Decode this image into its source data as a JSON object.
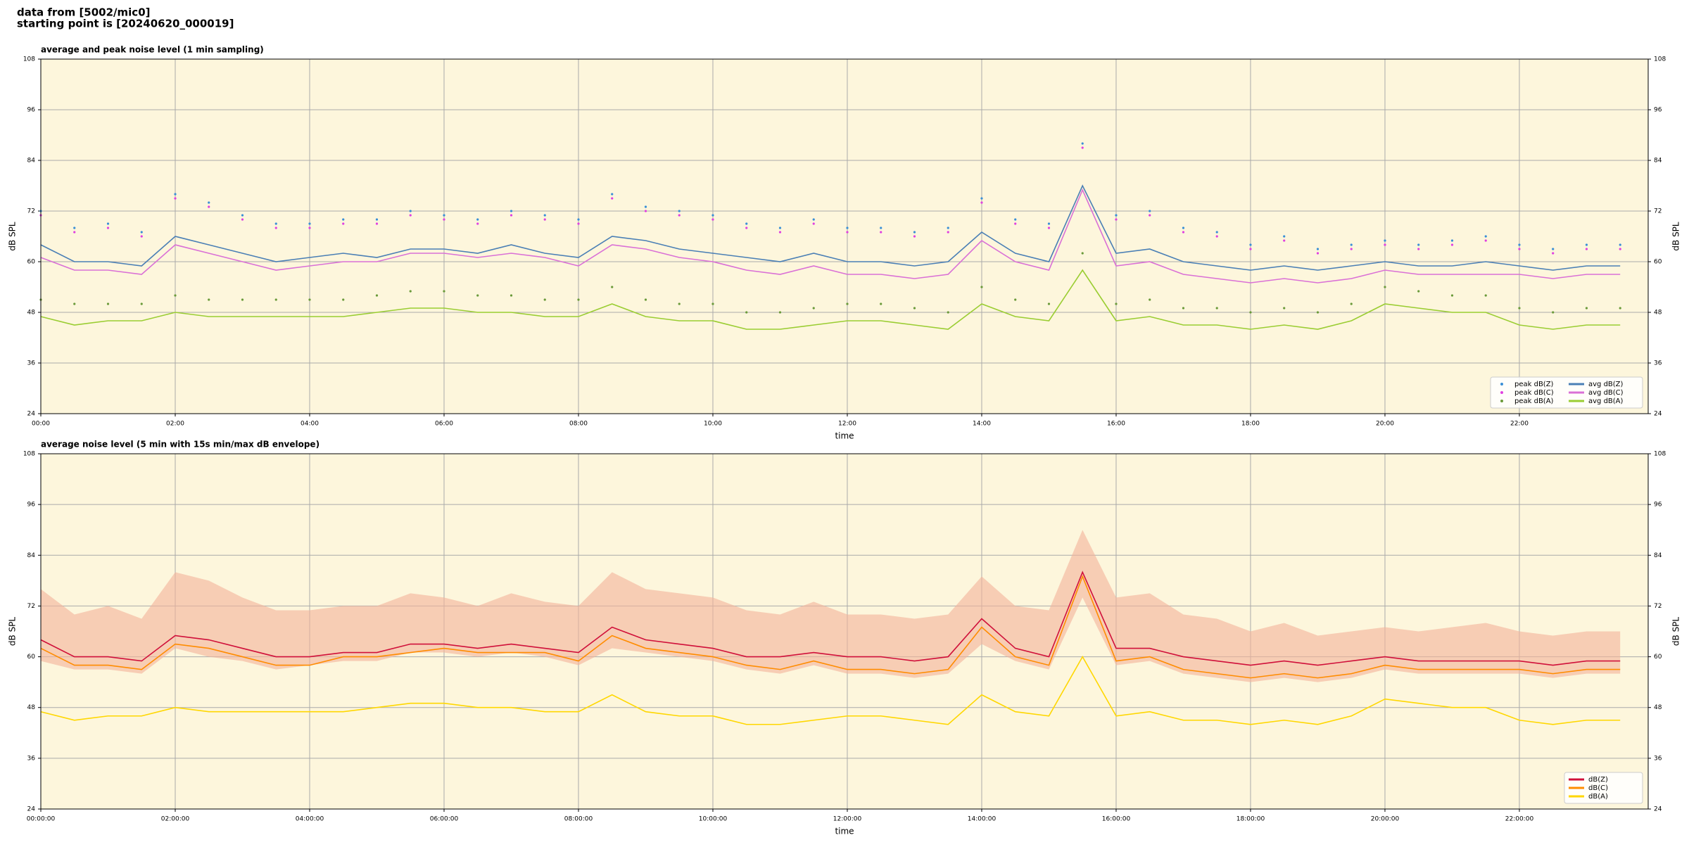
{
  "header": {
    "lines": [
      "data from [5002/mic0]",
      "starting point is [20240620_000019]"
    ]
  },
  "chart_data": [
    {
      "type": "line",
      "title": "average and peak noise level (1 min sampling)",
      "x_label": "time",
      "y_label": "dB SPL",
      "background": "#fdf6dc",
      "grid": true,
      "legend": "lower right",
      "legend_columns": 2,
      "xlim": [
        0,
        1435
      ],
      "ylim": [
        24,
        108
      ],
      "yticks": [
        24,
        36,
        48,
        60,
        72,
        84,
        96,
        108
      ],
      "xticks": [
        {
          "value": 0,
          "label": "00:00"
        },
        {
          "value": 120,
          "label": "02:00"
        },
        {
          "value": 240,
          "label": "04:00"
        },
        {
          "value": 360,
          "label": "06:00"
        },
        {
          "value": 480,
          "label": "08:00"
        },
        {
          "value": 600,
          "label": "10:00"
        },
        {
          "value": 720,
          "label": "12:00"
        },
        {
          "value": 840,
          "label": "14:00"
        },
        {
          "value": 960,
          "label": "16:00"
        },
        {
          "value": 1080,
          "label": "18:00"
        },
        {
          "value": 1200,
          "label": "20:00"
        },
        {
          "value": 1320,
          "label": "22:00"
        }
      ],
      "x": [
        0,
        30,
        60,
        90,
        120,
        150,
        180,
        210,
        240,
        270,
        300,
        330,
        360,
        390,
        420,
        450,
        480,
        510,
        540,
        570,
        600,
        630,
        660,
        690,
        720,
        750,
        780,
        810,
        840,
        870,
        900,
        930,
        960,
        990,
        1020,
        1050,
        1080,
        1110,
        1140,
        1170,
        1200,
        1230,
        1260,
        1290,
        1320,
        1350,
        1380,
        1410
      ],
      "series": [
        {
          "name": "peak dB(Z)",
          "type": "scatter",
          "color": "#3a8fd6",
          "values": [
            72,
            68,
            69,
            67,
            76,
            74,
            71,
            69,
            69,
            70,
            70,
            72,
            71,
            70,
            72,
            71,
            70,
            76,
            73,
            72,
            71,
            69,
            68,
            70,
            68,
            68,
            67,
            68,
            75,
            70,
            69,
            88,
            71,
            72,
            68,
            67,
            64,
            66,
            63,
            64,
            65,
            64,
            65,
            66,
            64,
            63,
            64,
            64
          ]
        },
        {
          "name": "peak dB(C)",
          "type": "scatter",
          "color": "#e040e0",
          "values": [
            71,
            67,
            68,
            66,
            75,
            73,
            70,
            68,
            68,
            69,
            69,
            71,
            70,
            69,
            71,
            70,
            69,
            75,
            72,
            71,
            70,
            68,
            67,
            69,
            67,
            67,
            66,
            67,
            74,
            69,
            68,
            87,
            70,
            71,
            67,
            66,
            63,
            65,
            62,
            63,
            64,
            63,
            64,
            65,
            63,
            62,
            63,
            63
          ]
        },
        {
          "name": "peak dB(A)",
          "type": "scatter",
          "color": "#6a9a3a",
          "values": [
            51,
            50,
            50,
            50,
            52,
            51,
            51,
            51,
            51,
            51,
            52,
            53,
            53,
            52,
            52,
            51,
            51,
            54,
            51,
            50,
            50,
            48,
            48,
            49,
            50,
            50,
            49,
            48,
            54,
            51,
            50,
            62,
            50,
            51,
            49,
            49,
            48,
            49,
            48,
            50,
            54,
            53,
            52,
            52,
            49,
            48,
            49,
            49
          ]
        },
        {
          "name": "avg dB(Z)",
          "type": "line",
          "color": "#4a7fb5",
          "values": [
            64,
            60,
            60,
            59,
            66,
            64,
            62,
            60,
            61,
            62,
            61,
            63,
            63,
            62,
            64,
            62,
            61,
            66,
            65,
            63,
            62,
            61,
            60,
            62,
            60,
            60,
            59,
            60,
            67,
            62,
            60,
            78,
            62,
            63,
            60,
            59,
            58,
            59,
            58,
            59,
            60,
            59,
            59,
            60,
            59,
            58,
            59,
            59
          ]
        },
        {
          "name": "avg dB(C)",
          "type": "line",
          "color": "#da70d6",
          "values": [
            61,
            58,
            58,
            57,
            64,
            62,
            60,
            58,
            59,
            60,
            60,
            62,
            62,
            61,
            62,
            61,
            59,
            64,
            63,
            61,
            60,
            58,
            57,
            59,
            57,
            57,
            56,
            57,
            65,
            60,
            58,
            77,
            59,
            60,
            57,
            56,
            55,
            56,
            55,
            56,
            58,
            57,
            57,
            57,
            57,
            56,
            57,
            57
          ]
        },
        {
          "name": "avg dB(A)",
          "type": "line",
          "color": "#9acd32",
          "values": [
            47,
            45,
            46,
            46,
            48,
            47,
            47,
            47,
            47,
            47,
            48,
            49,
            49,
            48,
            48,
            47,
            47,
            50,
            47,
            46,
            46,
            44,
            44,
            45,
            46,
            46,
            45,
            44,
            50,
            47,
            46,
            58,
            46,
            47,
            45,
            45,
            44,
            45,
            44,
            46,
            50,
            49,
            48,
            48,
            45,
            44,
            45,
            45
          ]
        }
      ]
    },
    {
      "type": "line",
      "title": "average noise level (5 min with 15s min/max dB envelope)",
      "x_label": "time",
      "y_label": "dB SPL",
      "background": "#fdf6dc",
      "grid": true,
      "legend": "lower right",
      "legend_columns": 1,
      "xlim": [
        0,
        1435
      ],
      "ylim": [
        24,
        108
      ],
      "yticks": [
        24,
        36,
        48,
        60,
        72,
        84,
        96,
        108
      ],
      "xticks": [
        {
          "value": 0,
          "label": "00:00:00"
        },
        {
          "value": 120,
          "label": "02:00:00"
        },
        {
          "value": 240,
          "label": "04:00:00"
        },
        {
          "value": 360,
          "label": "06:00:00"
        },
        {
          "value": 480,
          "label": "08:00:00"
        },
        {
          "value": 600,
          "label": "10:00:00"
        },
        {
          "value": 720,
          "label": "12:00:00"
        },
        {
          "value": 840,
          "label": "14:00:00"
        },
        {
          "value": 960,
          "label": "16:00:00"
        },
        {
          "value": 1080,
          "label": "18:00:00"
        },
        {
          "value": 1200,
          "label": "20:00:00"
        },
        {
          "value": 1320,
          "label": "22:00:00"
        }
      ],
      "x": [
        0,
        30,
        60,
        90,
        120,
        150,
        180,
        210,
        240,
        270,
        300,
        330,
        360,
        390,
        420,
        450,
        480,
        510,
        540,
        570,
        600,
        630,
        660,
        690,
        720,
        750,
        780,
        810,
        840,
        870,
        900,
        930,
        960,
        990,
        1020,
        1050,
        1080,
        1110,
        1140,
        1170,
        1200,
        1230,
        1260,
        1290,
        1320,
        1350,
        1380,
        1410
      ],
      "envelope": {
        "color": "#f4b39a",
        "max": [
          76,
          70,
          72,
          69,
          80,
          78,
          74,
          71,
          71,
          72,
          72,
          75,
          74,
          72,
          75,
          73,
          72,
          80,
          76,
          75,
          74,
          71,
          70,
          73,
          70,
          70,
          69,
          70,
          79,
          72,
          71,
          90,
          74,
          75,
          70,
          69,
          66,
          68,
          65,
          66,
          67,
          66,
          67,
          68,
          66,
          65,
          66,
          66
        ],
        "min": [
          59,
          57,
          57,
          56,
          62,
          60,
          59,
          57,
          58,
          59,
          59,
          61,
          61,
          60,
          61,
          60,
          58,
          62,
          61,
          60,
          59,
          57,
          56,
          58,
          56,
          56,
          55,
          56,
          63,
          59,
          57,
          74,
          58,
          59,
          56,
          55,
          54,
          55,
          54,
          55,
          57,
          56,
          56,
          56,
          56,
          55,
          56,
          56
        ]
      },
      "series": [
        {
          "name": "dB(Z)",
          "type": "line",
          "color": "#d0103a",
          "values": [
            64,
            60,
            60,
            59,
            65,
            64,
            62,
            60,
            60,
            61,
            61,
            63,
            63,
            62,
            63,
            62,
            61,
            67,
            64,
            63,
            62,
            60,
            60,
            61,
            60,
            60,
            59,
            60,
            69,
            62,
            60,
            80,
            62,
            62,
            60,
            59,
            58,
            59,
            58,
            59,
            60,
            59,
            59,
            59,
            59,
            58,
            59,
            59
          ]
        },
        {
          "name": "dB(C)",
          "type": "line",
          "color": "#ff8c00",
          "values": [
            62,
            58,
            58,
            57,
            63,
            62,
            60,
            58,
            58,
            60,
            60,
            61,
            62,
            61,
            61,
            61,
            59,
            65,
            62,
            61,
            60,
            58,
            57,
            59,
            57,
            57,
            56,
            57,
            67,
            60,
            58,
            79,
            59,
            60,
            57,
            56,
            55,
            56,
            55,
            56,
            58,
            57,
            57,
            57,
            57,
            56,
            57,
            57
          ]
        },
        {
          "name": "dB(A)",
          "type": "line",
          "color": "#ffd700",
          "values": [
            47,
            45,
            46,
            46,
            48,
            47,
            47,
            47,
            47,
            47,
            48,
            49,
            49,
            48,
            48,
            47,
            47,
            51,
            47,
            46,
            46,
            44,
            44,
            45,
            46,
            46,
            45,
            44,
            51,
            47,
            46,
            60,
            46,
            47,
            45,
            45,
            44,
            45,
            44,
            46,
            50,
            49,
            48,
            48,
            45,
            44,
            45,
            45
          ]
        }
      ]
    }
  ]
}
